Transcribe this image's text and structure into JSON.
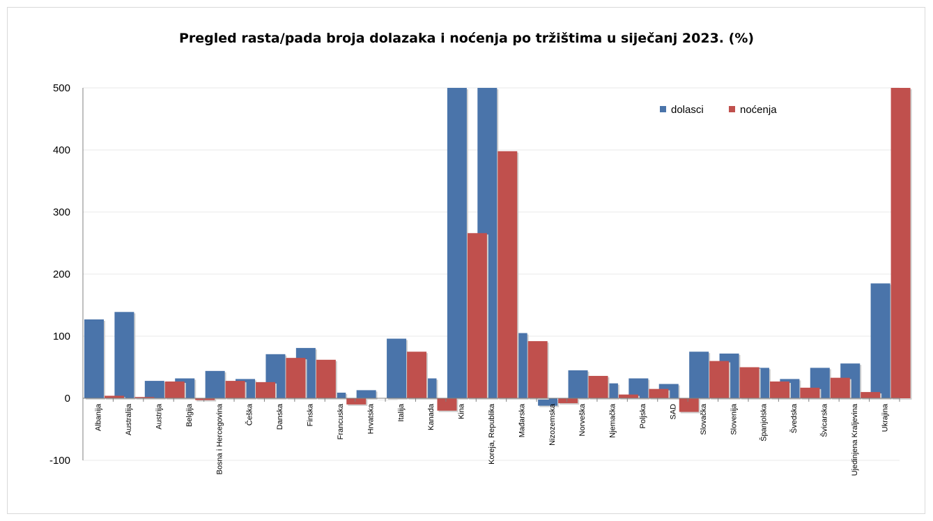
{
  "chart_data": {
    "type": "bar",
    "title": "Pregled rasta/pada broja dolazaka i noćenja po tržištima u siječanj 2023. (%)",
    "xlabel": "",
    "ylabel": "",
    "ylim": [
      -100,
      500
    ],
    "yticks": [
      500,
      400,
      300,
      200,
      100,
      0,
      -100
    ],
    "grid": true,
    "legend_position": "top-right",
    "colors": {
      "dolasci": "#4a74aa",
      "nocenja": "#c0504d"
    },
    "categories": [
      "Albanija",
      "Australija",
      "Austrija",
      "Belgija",
      "Bosna i Hercegovina",
      "Češka",
      "Danska",
      "Finska",
      "Francuska",
      "Hrvatska",
      "Italija",
      "Kanada",
      "Kina",
      "Koreja, Republika",
      "Mađarska",
      "Nizozemska",
      "Norveška",
      "Njemačka",
      "Poljska",
      "SAD",
      "Slovačka",
      "Slovenija",
      "Španjolska",
      "Švedska",
      "Švicarska",
      "Ujedinjena Kraljevina",
      "Ukrajina"
    ],
    "series": [
      {
        "name": "dolasci",
        "values": [
          127,
          139,
          28,
          32,
          44,
          31,
          71,
          81,
          9,
          13,
          96,
          32,
          500,
          500,
          105,
          -12,
          45,
          24,
          32,
          23,
          75,
          72,
          49,
          31,
          49,
          56,
          185
        ]
      },
      {
        "name": "noćenja",
        "values": [
          4,
          2,
          27,
          -3,
          28,
          26,
          65,
          62,
          -10,
          0,
          75,
          -20,
          266,
          398,
          92,
          -8,
          36,
          6,
          15,
          -22,
          60,
          50,
          27,
          17,
          33,
          10,
          500
        ]
      }
    ]
  }
}
